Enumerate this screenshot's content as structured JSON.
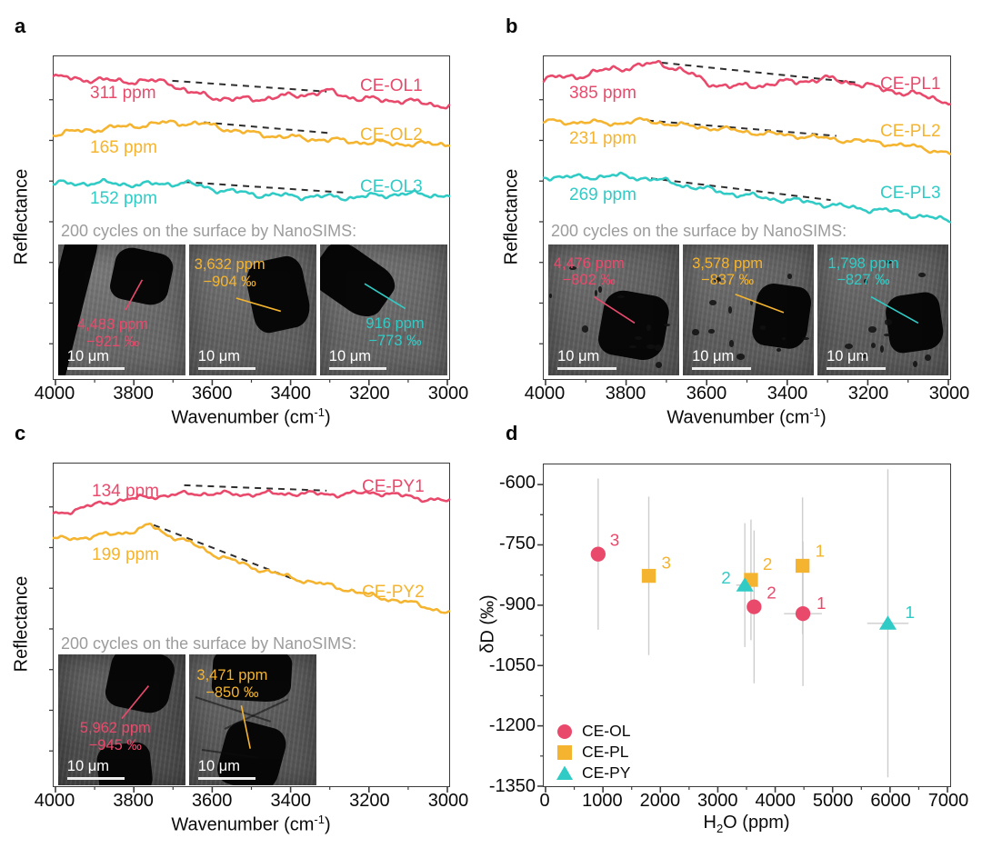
{
  "chart_data": [
    {
      "panel": "a",
      "type": "line",
      "ylabel": "Reflectance",
      "xlabel_parts": {
        "pre": "Wavenumber (cm",
        "sup": "-1",
        "post": ")"
      },
      "x_axis": {
        "min": 4000,
        "max": 3000,
        "reversed": true,
        "ticks": [
          4000,
          3800,
          3600,
          3400,
          3200,
          3000
        ],
        "tick_labels": [
          "4000",
          "3800",
          "3600",
          "3400",
          "3200",
          "3000"
        ]
      },
      "y_axis": {
        "label": "Reflectance",
        "note": "offset spectra, arbitrary units"
      },
      "series": [
        {
          "name": "CE-OL1",
          "water_label": "311 ppm",
          "water_ppm": 311,
          "color": "#e94a6c"
        },
        {
          "name": "CE-OL2",
          "water_label": "165 ppm",
          "water_ppm": 165,
          "color": "#f5b42f"
        },
        {
          "name": "CE-OL3",
          "water_label": "152 ppm",
          "water_ppm": 152,
          "color": "#31cbc6"
        }
      ],
      "caption": "200 cycles on the surface by NanoSIMS:",
      "inset_images": [
        {
          "h2o_label": "4,483 ppm",
          "dD_label": "−921 ‰",
          "h2o_ppm": 4483,
          "dD_permil": -921,
          "scalebar": "10 μm",
          "color": "#e94a6c"
        },
        {
          "h2o_label": "3,632 ppm",
          "dD_label": "−904 ‰",
          "h2o_ppm": 3632,
          "dD_permil": -904,
          "scalebar": "10 μm",
          "color": "#f5b42f"
        },
        {
          "h2o_label": "916 ppm",
          "dD_label": "−773 ‰",
          "h2o_ppm": 916,
          "dD_permil": -773,
          "scalebar": "10 μm",
          "color": "#31cbc6"
        }
      ]
    },
    {
      "panel": "b",
      "type": "line",
      "ylabel": "Reflectance",
      "xlabel_parts": {
        "pre": "Wavenumber (cm",
        "sup": "-1",
        "post": ")"
      },
      "x_axis": {
        "min": 4000,
        "max": 3000,
        "reversed": true,
        "ticks": [
          4000,
          3800,
          3600,
          3400,
          3200,
          3000
        ],
        "tick_labels": [
          "4000",
          "3800",
          "3600",
          "3400",
          "3200",
          "3000"
        ]
      },
      "y_axis": {
        "label": "Reflectance",
        "note": "offset spectra, arbitrary units"
      },
      "series": [
        {
          "name": "CE-PL1",
          "water_label": "385 ppm",
          "water_ppm": 385,
          "color": "#e94a6c"
        },
        {
          "name": "CE-PL2",
          "water_label": "231 ppm",
          "water_ppm": 231,
          "color": "#f5b42f"
        },
        {
          "name": "CE-PL3",
          "water_label": "269 ppm",
          "water_ppm": 269,
          "color": "#31cbc6"
        }
      ],
      "caption": "200 cycles on the surface by NanoSIMS:",
      "inset_images": [
        {
          "h2o_label": "4,476 ppm",
          "dD_label": "−802 ‰",
          "h2o_ppm": 4476,
          "dD_permil": -802,
          "scalebar": "10 μm",
          "color": "#e94a6c"
        },
        {
          "h2o_label": "3,578 ppm",
          "dD_label": "−837 ‰",
          "h2o_ppm": 3578,
          "dD_permil": -837,
          "scalebar": "10 μm",
          "color": "#f5b42f"
        },
        {
          "h2o_label": "1,798 ppm",
          "dD_label": "−827 ‰",
          "h2o_ppm": 1798,
          "dD_permil": -827,
          "scalebar": "10 μm",
          "color": "#31cbc6"
        }
      ]
    },
    {
      "panel": "c",
      "type": "line",
      "ylabel": "Reflectance",
      "xlabel_parts": {
        "pre": "Wavenumber (cm",
        "sup": "-1",
        "post": ")"
      },
      "x_axis": {
        "min": 4000,
        "max": 3000,
        "reversed": true,
        "ticks": [
          4000,
          3800,
          3600,
          3400,
          3200,
          3000
        ],
        "tick_labels": [
          "4000",
          "3800",
          "3600",
          "3400",
          "3200",
          "3000"
        ]
      },
      "y_axis": {
        "label": "Reflectance",
        "note": "offset spectra, arbitrary units"
      },
      "series": [
        {
          "name": "CE-PY1",
          "water_label": "134 ppm",
          "water_ppm": 134,
          "color": "#e94a6c"
        },
        {
          "name": "CE-PY2",
          "water_label": "199 ppm",
          "water_ppm": 199,
          "color": "#f5b42f"
        }
      ],
      "caption": "200 cycles on the surface by NanoSIMS:",
      "inset_images": [
        {
          "h2o_label": "5,962 ppm",
          "dD_label": "−945 ‰",
          "h2o_ppm": 5962,
          "dD_permil": -945,
          "scalebar": "10 μm",
          "color": "#e94a6c"
        },
        {
          "h2o_label": "3,471 ppm",
          "dD_label": "−850 ‰",
          "h2o_ppm": 3471,
          "dD_permil": -850,
          "scalebar": "10 μm",
          "color": "#f5b42f"
        }
      ]
    },
    {
      "panel": "d",
      "type": "scatter",
      "ylabel": "δD (‰)",
      "xlabel_parts": {
        "pre": "H",
        "sub": "2",
        "post": "O (ppm)"
      },
      "x_axis": {
        "min": 0,
        "max": 7000,
        "ticks": [
          0,
          1000,
          2000,
          3000,
          4000,
          5000,
          6000,
          7000
        ],
        "tick_labels": [
          "0",
          "1000",
          "2000",
          "3000",
          "4000",
          "5000",
          "6000",
          "7000"
        ]
      },
      "y_axis": {
        "min": -1350,
        "max": -550,
        "ticks": [
          -600,
          -750,
          -900,
          -1050,
          -1200,
          -1350
        ],
        "tick_labels": [
          "-600",
          "-750",
          "-900",
          "-1050",
          "-1200",
          "-1350"
        ]
      },
      "legend": [
        {
          "label": "CE-OL",
          "marker": "circle",
          "color": "#e94a6c"
        },
        {
          "label": "CE-PL",
          "marker": "square",
          "color": "#f5b42f"
        },
        {
          "label": "CE-PY",
          "marker": "triangle",
          "color": "#31cbc6"
        }
      ],
      "grid": false,
      "error_bar_color": "#cdcdcd",
      "points": [
        {
          "sample": "CE-OL1",
          "series": "CE-OL",
          "label": "1",
          "x": 4483,
          "y": -921,
          "err_x": 330,
          "err_y": 180
        },
        {
          "sample": "CE-OL2",
          "series": "CE-OL",
          "label": "2",
          "x": 3632,
          "y": -904,
          "err_x": 120,
          "err_y": 190
        },
        {
          "sample": "CE-OL3",
          "series": "CE-OL",
          "label": "3",
          "x": 916,
          "y": -773,
          "err_x": 100,
          "err_y": 188
        },
        {
          "sample": "CE-PL1",
          "series": "CE-PL",
          "label": "1",
          "x": 4476,
          "y": -802,
          "err_x": 120,
          "err_y": 170
        },
        {
          "sample": "CE-PL2",
          "series": "CE-PL",
          "label": "2",
          "x": 3578,
          "y": -837,
          "err_x": 100,
          "err_y": 150
        },
        {
          "sample": "CE-PL3",
          "series": "CE-PL",
          "label": "3",
          "x": 1798,
          "y": -827,
          "err_x": 90,
          "err_y": 197
        },
        {
          "sample": "CE-PY1",
          "series": "CE-PY",
          "label": "1",
          "x": 5962,
          "y": -945,
          "err_x": 360,
          "err_y": 383
        },
        {
          "sample": "CE-PY2",
          "series": "CE-PY",
          "label": "2",
          "x": 3471,
          "y": -850,
          "err_x": 150,
          "err_y": 154
        }
      ]
    }
  ]
}
